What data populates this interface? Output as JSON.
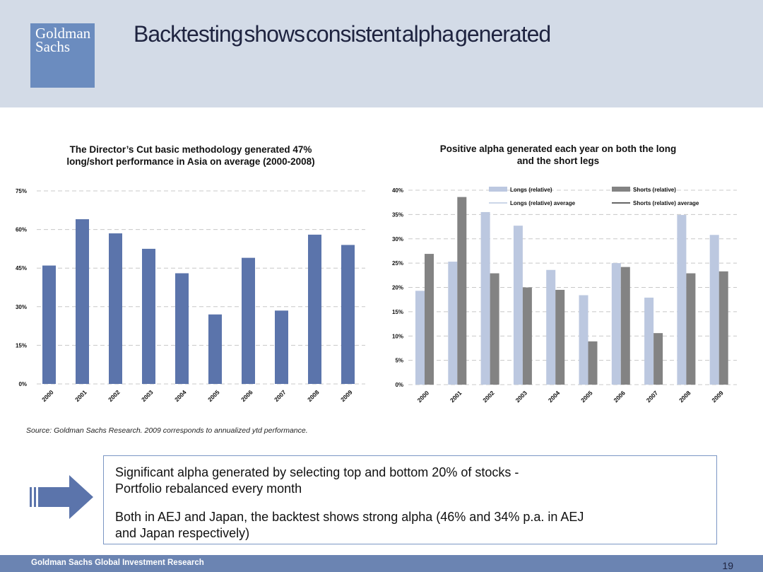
{
  "logo": {
    "line1": "Goldman",
    "line2": "Sachs"
  },
  "title": "Backtesting shows consistent alpha generated",
  "source": "Source: Goldman Sachs Research. 2009 corresponds to annualized ytd performance.",
  "callout": {
    "line1": "Significant alpha generated by selecting top and bottom 20% of stocks -",
    "line2": "Portfolio rebalanced every month",
    "line3": "Both in AEJ and Japan, the backtest shows strong alpha (46% and 34% p.a. in AEJ",
    "line4": "and Japan respectively)",
    "icon": "right-arrow-icon"
  },
  "footer": {
    "label": "Goldman Sachs Global Investment Research",
    "page": "19"
  },
  "colors": {
    "bar_blue": "#5b74ab",
    "longs": "#bcc8e0",
    "shorts": "#838383",
    "header": "#d3dbe7",
    "footer": "#6b84b2"
  },
  "chart_data": [
    {
      "type": "bar",
      "title": [
        "The Director’s Cut basic methodology generated 47%",
        "long/short performance in Asia on average (2000-2008)"
      ],
      "categories": [
        "2000",
        "2001",
        "2002",
        "2003",
        "2004",
        "2005",
        "2006",
        "2007",
        "2008",
        "2009"
      ],
      "values": [
        46,
        64,
        58.5,
        52.5,
        43,
        27,
        49,
        28.5,
        58,
        54
      ],
      "ylim": [
        0,
        75
      ],
      "yticks": [
        0,
        15,
        30,
        45,
        60,
        75
      ],
      "ytick_labels": [
        "0%",
        "15%",
        "30%",
        "45%",
        "60%",
        "75%"
      ],
      "grid": true
    },
    {
      "type": "bar",
      "title": [
        "Positive alpha generated each year on both the long",
        "and the short legs"
      ],
      "categories": [
        "2000",
        "2001",
        "2002",
        "2003",
        "2004",
        "2005",
        "2006",
        "2007",
        "2008",
        "2009"
      ],
      "series": [
        {
          "name": "Longs  (relative)",
          "values": [
            19.3,
            25.3,
            35.5,
            32.7,
            23.6,
            18.4,
            25,
            17.9,
            34.9,
            30.8
          ]
        },
        {
          "name": "Shorts  (relative)",
          "values": [
            26.9,
            38.6,
            22.9,
            20,
            19.5,
            8.9,
            24.2,
            10.6,
            22.9,
            23.3
          ]
        }
      ],
      "legend_extra": [
        "Longs  (relative) average",
        "Shorts  (relative) average"
      ],
      "ylim": [
        0,
        40
      ],
      "yticks": [
        0,
        5,
        10,
        15,
        20,
        25,
        30,
        35,
        40
      ],
      "ytick_labels": [
        "0%",
        "5%",
        "10%",
        "15%",
        "20%",
        "25%",
        "30%",
        "35%",
        "40%"
      ],
      "legend_position": "top",
      "grid": true
    }
  ]
}
